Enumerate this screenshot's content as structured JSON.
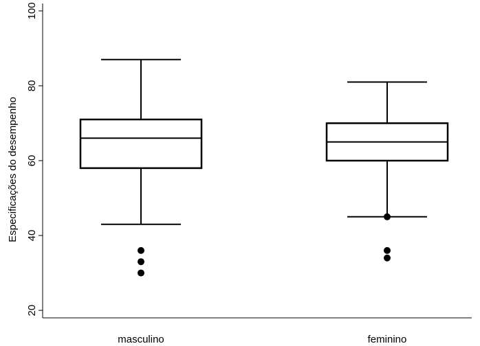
{
  "chart_data": {
    "type": "box",
    "title": "",
    "xlabel": "",
    "ylabel": "Especificações do desempenho",
    "ylim": [
      18,
      102
    ],
    "yticks": [
      20,
      40,
      60,
      80,
      100
    ],
    "categories": [
      "masculino",
      "feminino"
    ],
    "boxes": [
      {
        "category": "masculino",
        "whisker_low": 43,
        "q1": 58,
        "median": 66,
        "q3": 71,
        "whisker_high": 87,
        "outliers": [
          36,
          33,
          30
        ]
      },
      {
        "category": "feminino",
        "whisker_low": 45,
        "q1": 60,
        "median": 65,
        "q3": 70,
        "whisker_high": 81,
        "outliers": [
          45,
          36,
          34
        ]
      }
    ],
    "grid": false,
    "legend": "none"
  }
}
